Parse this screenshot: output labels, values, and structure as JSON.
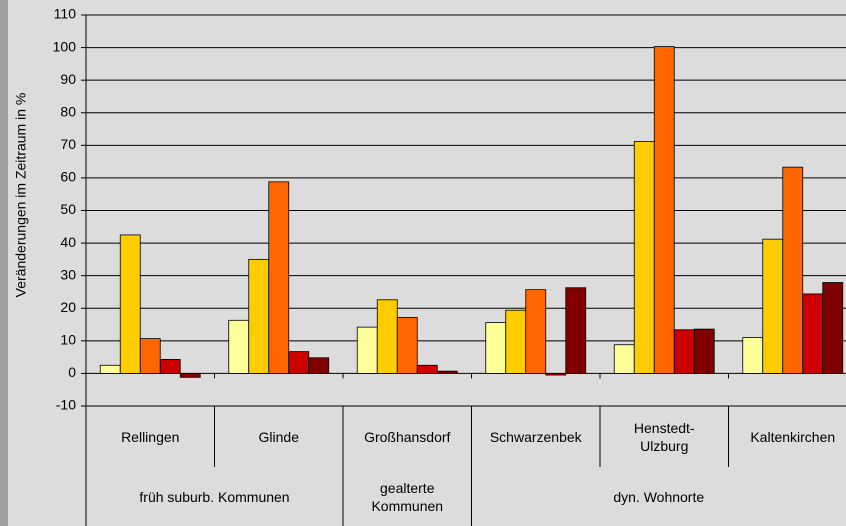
{
  "chart_data": {
    "type": "bar",
    "ylabel": "Veränderungen im Zeitraum in %",
    "categories": [
      "Rellingen",
      "Glinde",
      "Großhansdorf",
      "Schwarzenbek",
      "Henstedt-Ulzburg",
      "Kaltenkirchen"
    ],
    "series": [
      {
        "color": "#ffff99",
        "values": [
          2.5,
          16.3,
          14.2,
          15.6,
          8.8,
          11
        ]
      },
      {
        "color": "#ffcc00",
        "values": [
          42.5,
          35,
          22.6,
          19.4,
          71.2,
          41.2
        ]
      },
      {
        "color": "#ff6600",
        "values": [
          10.7,
          58.8,
          17.2,
          25.7,
          100.3,
          63.3
        ]
      },
      {
        "color": "#cc0000",
        "values": [
          4.3,
          6.7,
          2.5,
          -0.5,
          13.4,
          24.4
        ]
      },
      {
        "color": "#800000",
        "values": [
          -1.2,
          4.8,
          0.7,
          26.3,
          13.6,
          27.9
        ]
      }
    ],
    "groups": [
      {
        "label": "früh suburb. Kommunen",
        "categories": [
          "Rellingen",
          "Glinde"
        ]
      },
      {
        "label": "gealterte Kommunen",
        "categories": [
          "Großhansdorf"
        ]
      },
      {
        "label": "dyn. Wohnorte",
        "categories": [
          "Schwarzenbek",
          "Henstedt-Ulzburg",
          "Kaltenkirchen"
        ]
      }
    ],
    "ylim": [
      -10,
      110
    ],
    "yticks": [
      -10,
      0,
      10,
      20,
      30,
      40,
      50,
      60,
      70,
      80,
      90,
      100,
      110
    ],
    "grid": true
  }
}
